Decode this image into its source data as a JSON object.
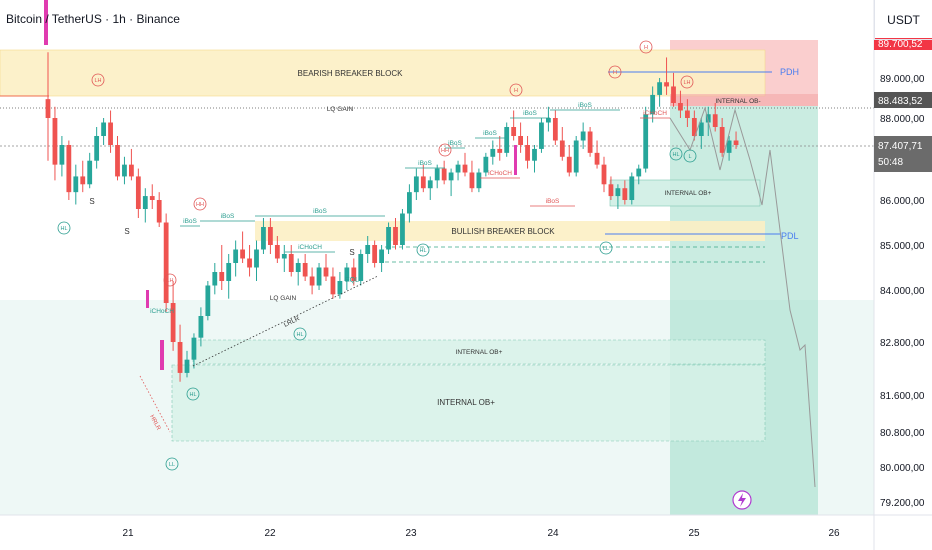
{
  "header": {
    "symbol": "Bitcoin / TetherUS · 1h · Binance",
    "currency": "USDT"
  },
  "price_tags": {
    "top": "89.700,52",
    "level": "88.483,52",
    "last": "87.407,71",
    "countdown": "50:48"
  },
  "chart_data": {
    "type": "candlestick",
    "x_ticks": [
      "21",
      "22",
      "23",
      "24",
      "25",
      "26"
    ],
    "y_ticks": [
      "89.000,00",
      "88.000,00",
      "86.000,00",
      "85.000,00",
      "84.000,00",
      "82.800,00",
      "81.600,00",
      "80.800,00",
      "80.000,00",
      "79.200,00"
    ],
    "zones": {
      "bearish_breaker": "BEARISH BREAKER BLOCK",
      "bullish_breaker": "BULLISH BREAKER BLOCK",
      "internal_ob_upper": "INTERNAL OB-",
      "internal_ob_mid": "INTERNAL OB+",
      "internal_ob_low1": "INTERNAL OB+",
      "internal_ob_low2": "INTERNAL OB+"
    },
    "levels": {
      "pdh": "PDH",
      "pdl": "PDL"
    },
    "labels": {
      "lq_gain": "LQ GAIN",
      "lq_gain2": "LQ GAIN",
      "lrlr": "LRLR",
      "hrlr": "HRLR",
      "eql": "EQL",
      "ibos": "iBoS",
      "ichoch": "iCHoCH",
      "s": "S",
      "hh": "HH",
      "lh": "LH",
      "hl": "HL",
      "ll": "LL",
      "h": "H",
      "l": "L"
    },
    "series_colors": {
      "up": "#26a69a",
      "down": "#ef5350"
    },
    "candles": [
      [
        88.5,
        89.5,
        87.0,
        88.0
      ],
      [
        88.0,
        88.3,
        86.5,
        86.9
      ],
      [
        86.9,
        87.6,
        86.6,
        87.4
      ],
      [
        87.4,
        87.5,
        86.0,
        86.2
      ],
      [
        86.2,
        86.9,
        85.9,
        86.6
      ],
      [
        86.6,
        87.0,
        86.2,
        86.4
      ],
      [
        86.4,
        87.2,
        86.3,
        87.0
      ],
      [
        87.0,
        87.8,
        86.8,
        87.6
      ],
      [
        87.6,
        88.0,
        87.4,
        87.9
      ],
      [
        87.9,
        88.2,
        87.2,
        87.4
      ],
      [
        87.4,
        87.6,
        86.5,
        86.6
      ],
      [
        86.6,
        87.1,
        86.4,
        86.9
      ],
      [
        86.9,
        87.3,
        86.5,
        86.6
      ],
      [
        86.6,
        86.8,
        85.6,
        85.8
      ],
      [
        85.8,
        86.3,
        85.5,
        86.1
      ],
      [
        86.1,
        86.4,
        85.8,
        86.0
      ],
      [
        86.0,
        86.2,
        85.4,
        85.5
      ],
      [
        85.5,
        85.7,
        83.5,
        83.7
      ],
      [
        83.7,
        84.2,
        82.6,
        82.8
      ],
      [
        82.8,
        83.2,
        81.9,
        82.1
      ],
      [
        82.1,
        82.6,
        82.0,
        82.4
      ],
      [
        82.4,
        83.0,
        82.2,
        82.9
      ],
      [
        82.9,
        83.6,
        82.7,
        83.4
      ],
      [
        83.4,
        84.2,
        83.3,
        84.1
      ],
      [
        84.1,
        84.6,
        83.9,
        84.4
      ],
      [
        84.4,
        85.0,
        84.0,
        84.2
      ],
      [
        84.2,
        84.8,
        83.8,
        84.6
      ],
      [
        84.6,
        85.1,
        84.3,
        84.9
      ],
      [
        84.9,
        85.3,
        84.6,
        84.7
      ],
      [
        84.7,
        85.0,
        84.3,
        84.5
      ],
      [
        84.5,
        85.1,
        84.2,
        84.9
      ],
      [
        84.9,
        85.6,
        84.8,
        85.4
      ],
      [
        85.4,
        85.6,
        84.8,
        85.0
      ],
      [
        85.0,
        85.2,
        84.6,
        84.7
      ],
      [
        84.7,
        85.0,
        84.4,
        84.8
      ],
      [
        84.8,
        85.0,
        84.3,
        84.4
      ],
      [
        84.4,
        84.7,
        84.1,
        84.6
      ],
      [
        84.6,
        84.8,
        84.2,
        84.3
      ],
      [
        84.3,
        84.5,
        83.9,
        84.1
      ],
      [
        84.1,
        84.6,
        84.0,
        84.5
      ],
      [
        84.5,
        84.8,
        84.2,
        84.3
      ],
      [
        84.3,
        84.5,
        83.8,
        83.9
      ],
      [
        83.9,
        84.4,
        83.8,
        84.2
      ],
      [
        84.2,
        84.6,
        84.0,
        84.5
      ],
      [
        84.5,
        84.7,
        84.1,
        84.2
      ],
      [
        84.2,
        84.9,
        84.1,
        84.8
      ],
      [
        84.8,
        85.2,
        84.6,
        85.0
      ],
      [
        85.0,
        85.1,
        84.5,
        84.6
      ],
      [
        84.6,
        85.0,
        84.4,
        84.9
      ],
      [
        84.9,
        85.5,
        84.8,
        85.4
      ],
      [
        85.4,
        85.6,
        84.9,
        85.0
      ],
      [
        85.0,
        85.8,
        84.9,
        85.7
      ],
      [
        85.7,
        86.4,
        85.5,
        86.2
      ],
      [
        86.2,
        86.8,
        86.0,
        86.6
      ],
      [
        86.6,
        86.9,
        86.2,
        86.3
      ],
      [
        86.3,
        86.6,
        86.0,
        86.5
      ],
      [
        86.5,
        86.9,
        86.3,
        86.8
      ],
      [
        86.8,
        87.0,
        86.4,
        86.5
      ],
      [
        86.5,
        86.8,
        86.1,
        86.7
      ],
      [
        86.7,
        87.0,
        86.5,
        86.9
      ],
      [
        86.9,
        87.2,
        86.6,
        86.7
      ],
      [
        86.7,
        87.0,
        86.2,
        86.3
      ],
      [
        86.3,
        86.8,
        86.2,
        86.7
      ],
      [
        86.7,
        87.2,
        86.6,
        87.1
      ],
      [
        87.1,
        87.5,
        86.9,
        87.3
      ],
      [
        87.3,
        87.6,
        87.0,
        87.2
      ],
      [
        87.2,
        87.9,
        87.1,
        87.8
      ],
      [
        87.8,
        88.2,
        87.5,
        87.6
      ],
      [
        87.6,
        87.9,
        87.2,
        87.4
      ],
      [
        87.4,
        87.6,
        86.8,
        87.0
      ],
      [
        87.0,
        87.4,
        86.7,
        87.3
      ],
      [
        87.3,
        88.0,
        87.2,
        87.9
      ],
      [
        87.9,
        88.3,
        87.7,
        88.0
      ],
      [
        88.0,
        88.2,
        87.4,
        87.5
      ],
      [
        87.5,
        87.8,
        87.0,
        87.1
      ],
      [
        87.1,
        87.4,
        86.6,
        86.7
      ],
      [
        86.7,
        87.6,
        86.6,
        87.5
      ],
      [
        87.5,
        87.9,
        87.3,
        87.7
      ],
      [
        87.7,
        87.8,
        87.1,
        87.2
      ],
      [
        87.2,
        87.5,
        86.8,
        86.9
      ],
      [
        86.9,
        87.1,
        86.2,
        86.4
      ],
      [
        86.4,
        86.6,
        86.0,
        86.1
      ],
      [
        86.1,
        86.4,
        85.8,
        86.3
      ],
      [
        86.3,
        86.5,
        85.9,
        86.0
      ],
      [
        86.0,
        86.7,
        85.9,
        86.6
      ],
      [
        86.6,
        86.9,
        86.4,
        86.8
      ],
      [
        86.8,
        88.3,
        86.7,
        88.1
      ],
      [
        88.1,
        88.8,
        87.9,
        88.6
      ],
      [
        88.6,
        89.0,
        88.3,
        88.9
      ],
      [
        88.9,
        89.4,
        88.6,
        88.8
      ],
      [
        88.8,
        89.1,
        88.3,
        88.4
      ],
      [
        88.4,
        88.7,
        88.0,
        88.2
      ],
      [
        88.2,
        88.5,
        87.8,
        88.0
      ],
      [
        88.0,
        88.2,
        87.5,
        87.6
      ],
      [
        87.6,
        88.0,
        87.3,
        87.9
      ],
      [
        87.9,
        88.3,
        87.6,
        88.1
      ],
      [
        88.1,
        88.4,
        87.7,
        87.8
      ],
      [
        87.8,
        88.0,
        87.1,
        87.2
      ],
      [
        87.2,
        87.6,
        87.0,
        87.5
      ],
      [
        87.5,
        87.7,
        87.3,
        87.4
      ]
    ],
    "projection": [
      [
        88.6,
        87.5
      ],
      [
        86.8,
        86.3
      ],
      [
        85.4,
        83.0
      ],
      [
        82.5,
        81.5
      ],
      [
        79.8,
        79.5
      ]
    ]
  }
}
